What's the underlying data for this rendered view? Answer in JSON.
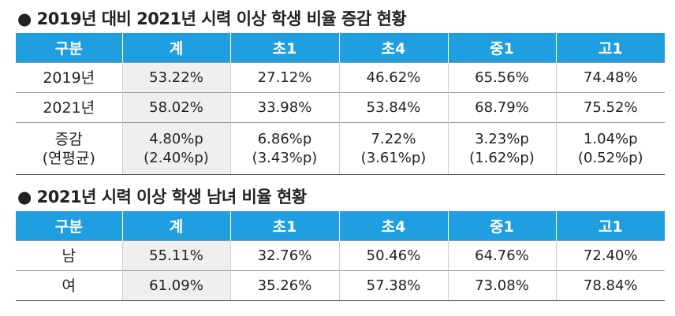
{
  "sections": [
    {
      "title": "● 2019년 대비 2021년 시력 이상 학생 비율 증감 현황",
      "header": [
        "구분",
        "계",
        "초1",
        "초4",
        "중1",
        "고1"
      ],
      "rows": [
        [
          "2019년",
          "53.22%",
          "27.12%",
          "46.62%",
          "65.56%",
          "74.48%"
        ],
        [
          "2021년",
          "58.02%",
          "33.98%",
          "53.84%",
          "68.79%",
          "75.52%"
        ],
        [
          [
            "증감",
            "(연평균)"
          ],
          [
            "4.80%p",
            "(2.40%p)"
          ],
          [
            "6.86%p",
            "(3.43%p)"
          ],
          [
            "7.22%",
            "(3.61%p)"
          ],
          [
            "3.23%p",
            "(1.62%p)"
          ],
          [
            "1.04%p",
            "(0.52%p)"
          ]
        ]
      ]
    },
    {
      "title": "● 2021년 시력 이상 학생 남녀 비율 현황",
      "header": [
        "구분",
        "계",
        "초1",
        "초4",
        "중1",
        "고1"
      ],
      "rows": [
        [
          "남",
          "55.11%",
          "32.76%",
          "50.46%",
          "64.76%",
          "72.40%"
        ],
        [
          "여",
          "61.09%",
          "35.26%",
          "57.38%",
          "73.08%",
          "78.84%"
        ]
      ]
    }
  ]
}
